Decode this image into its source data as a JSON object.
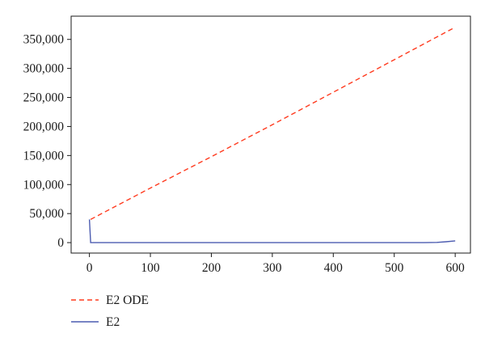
{
  "chart_data": {
    "type": "line",
    "title": "",
    "xlabel": "",
    "ylabel": "",
    "xlim": [
      -30,
      625
    ],
    "ylim": [
      -18000,
      390000
    ],
    "x_ticks": [
      0,
      100,
      200,
      300,
      400,
      500,
      600
    ],
    "x_tick_labels": [
      "0",
      "100",
      "200",
      "300",
      "400",
      "500",
      "600"
    ],
    "y_ticks": [
      0,
      50000,
      100000,
      150000,
      200000,
      250000,
      300000,
      350000
    ],
    "y_tick_labels": [
      "0",
      "50,000",
      "100,000",
      "150,000",
      "200,000",
      "250,000",
      "300,000",
      "350,000"
    ],
    "grid": false,
    "legend_position": "bottom-left",
    "series": [
      {
        "name": "E2 ODE",
        "color": "#ff3b1f",
        "dash": "dashed",
        "x": [
          2,
          100,
          200,
          300,
          400,
          500,
          600
        ],
        "y": [
          40000,
          94000,
          148000,
          203000,
          259000,
          315000,
          371000
        ]
      },
      {
        "name": "E2",
        "color": "#4c5cb0",
        "dash": "solid",
        "x": [
          0,
          2,
          50,
          100,
          200,
          300,
          400,
          500,
          550,
          570,
          585,
          600
        ],
        "y": [
          40000,
          0,
          0,
          0,
          0,
          0,
          0,
          0,
          0,
          300,
          1500,
          3000
        ]
      }
    ]
  }
}
